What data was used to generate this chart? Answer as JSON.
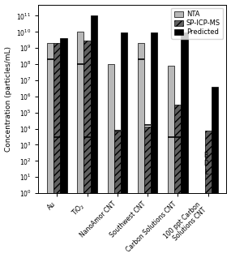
{
  "categories": [
    "Au",
    "TiO$_2$",
    "NanoAmor CNT",
    "Southwest CNT",
    "Carbon Solutions CNT",
    "100 ppt Carbon\nSolutions CNT"
  ],
  "nta": [
    2000000000.0,
    10000000000.0,
    100000000.0,
    2000000000.0,
    80000000.0,
    null
  ],
  "spicpms": [
    2000000000.0,
    3000000000.0,
    7000.0,
    14000.0,
    300000.0,
    8000.0
  ],
  "predicted": [
    4000000000.0,
    110000000000.0,
    9000000000.0,
    9000000000.0,
    9000000000.0,
    4000000.0
  ],
  "nta_marker": [
    200000000.0,
    100000000.0,
    null,
    200000000.0,
    3000.0,
    null
  ],
  "spicpms_marker": [
    3000.0,
    3000.0,
    8000.0,
    18000.0,
    3000.0,
    null
  ],
  "ylabel": "Concentration (particles/mL)",
  "ylim_min": 1.0,
  "ylim_max": 500000000000.0,
  "bar_width": 0.22,
  "nta_color": "#b8b8b8",
  "spicpms_color": "#606060",
  "predicted_color": "#000000",
  "bdl_text": "B\nD\nL",
  "axis_fontsize": 6.5,
  "tick_fontsize": 5.5,
  "legend_fontsize": 6.0
}
